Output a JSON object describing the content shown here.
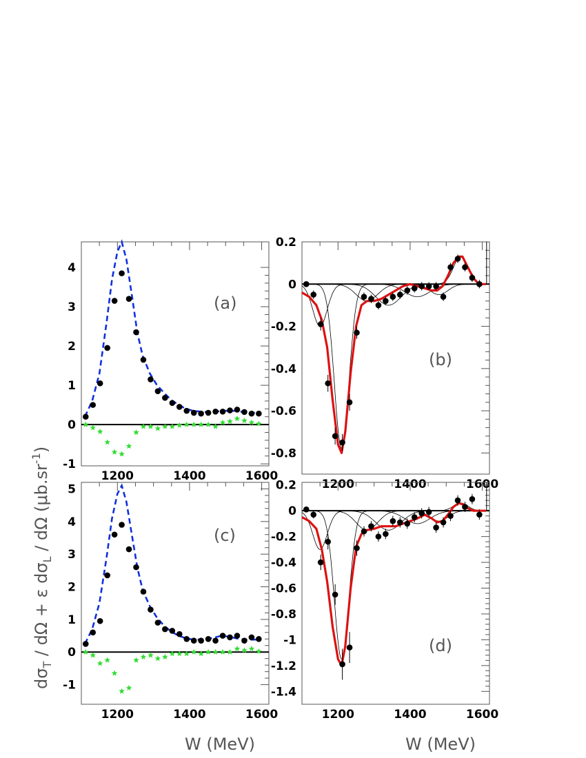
{
  "chart_data": [
    {
      "type": "scatter",
      "panel_label": "(a)",
      "xlim": [
        1100,
        1620
      ],
      "ylim": [
        -1.05,
        4.65
      ],
      "xticks": [
        1200,
        1400,
        1600
      ],
      "yticks": [
        -1,
        0,
        1,
        2,
        3,
        4
      ],
      "ytick_side": "left",
      "show_xtick_labels": true,
      "zero_line": true,
      "series": [
        {
          "marker": "dot",
          "color": "#000000",
          "x": [
            1112,
            1132,
            1152,
            1172,
            1192,
            1212,
            1232,
            1252,
            1272,
            1292,
            1312,
            1332,
            1352,
            1372,
            1392,
            1412,
            1432,
            1452,
            1472,
            1492,
            1512,
            1532,
            1552,
            1572,
            1592
          ],
          "y": [
            0.2,
            0.5,
            1.05,
            1.95,
            3.15,
            3.85,
            3.2,
            2.35,
            1.65,
            1.15,
            0.85,
            0.68,
            0.55,
            0.45,
            0.35,
            0.3,
            0.28,
            0.3,
            0.33,
            0.33,
            0.36,
            0.38,
            0.32,
            0.28,
            0.28
          ]
        },
        {
          "marker": "star",
          "color": "#33dd33",
          "x": [
            1112,
            1132,
            1152,
            1172,
            1192,
            1212,
            1232,
            1252,
            1272,
            1292,
            1312,
            1332,
            1352,
            1372,
            1392,
            1412,
            1432,
            1452,
            1472,
            1492,
            1512,
            1532,
            1552,
            1572,
            1592
          ],
          "y": [
            0.0,
            -0.08,
            -0.18,
            -0.45,
            -0.7,
            -0.75,
            -0.55,
            -0.2,
            -0.05,
            -0.05,
            -0.1,
            -0.05,
            -0.05,
            -0.02,
            0.0,
            0.0,
            0.0,
            0.0,
            -0.05,
            0.05,
            0.08,
            0.15,
            0.1,
            0.05,
            0.02
          ]
        },
        {
          "marker": "dashed-line",
          "color": "#1030dd",
          "x": [
            1110,
            1130,
            1150,
            1170,
            1185,
            1200,
            1212,
            1225,
            1240,
            1255,
            1270,
            1290,
            1310,
            1330,
            1350,
            1370,
            1390,
            1410,
            1430,
            1450,
            1470,
            1490,
            1510,
            1530,
            1550,
            1570,
            1590
          ],
          "y": [
            0.2,
            0.6,
            1.3,
            2.6,
            3.7,
            4.4,
            4.65,
            4.2,
            3.3,
            2.35,
            1.75,
            1.3,
            1.0,
            0.8,
            0.62,
            0.5,
            0.4,
            0.35,
            0.33,
            0.32,
            0.33,
            0.35,
            0.35,
            0.35,
            0.32,
            0.3,
            0.3
          ]
        }
      ]
    },
    {
      "type": "scatter",
      "panel_label": "(b)",
      "xlim": [
        1100,
        1620
      ],
      "ylim": [
        -0.9,
        0.2
      ],
      "xticks": [
        1200,
        1400,
        1600
      ],
      "yticks": [
        "0.2",
        "0",
        "-0.2",
        "-0.4",
        "-0.6",
        "-0.8"
      ],
      "ytick_side": "left",
      "show_xtick_labels": true,
      "zero_line": true,
      "series": [
        {
          "marker": "dot-with-error",
          "color": "#000000",
          "x": [
            1112,
            1132,
            1152,
            1172,
            1192,
            1212,
            1232,
            1252,
            1272,
            1292,
            1312,
            1332,
            1352,
            1372,
            1392,
            1412,
            1432,
            1452,
            1472,
            1492,
            1512,
            1532,
            1552,
            1572,
            1592
          ],
          "y": [
            0.0,
            -0.05,
            -0.19,
            -0.47,
            -0.72,
            -0.75,
            -0.56,
            -0.23,
            -0.06,
            -0.07,
            -0.1,
            -0.08,
            -0.06,
            -0.05,
            -0.03,
            -0.02,
            -0.01,
            -0.01,
            -0.01,
            -0.06,
            0.08,
            0.12,
            0.08,
            0.03,
            0.0
          ],
          "err": [
            0.01,
            0.02,
            0.03,
            0.04,
            0.04,
            0.04,
            0.04,
            0.03,
            0.02,
            0.02,
            0.02,
            0.02,
            0.02,
            0.02,
            0.02,
            0.02,
            0.02,
            0.02,
            0.02,
            0.02,
            0.02,
            0.02,
            0.02,
            0.02,
            0.02
          ]
        },
        {
          "marker": "thick-line",
          "color": "#dd1111",
          "x": [
            1100,
            1120,
            1140,
            1155,
            1170,
            1185,
            1200,
            1210,
            1220,
            1235,
            1250,
            1265,
            1280,
            1300,
            1320,
            1340,
            1360,
            1380,
            1400,
            1420,
            1440,
            1460,
            1475,
            1490,
            1505,
            1520,
            1535,
            1545,
            1560,
            1575,
            1590,
            1610
          ],
          "y": [
            -0.04,
            -0.06,
            -0.1,
            -0.17,
            -0.3,
            -0.55,
            -0.76,
            -0.8,
            -0.7,
            -0.42,
            -0.2,
            -0.1,
            -0.08,
            -0.08,
            -0.07,
            -0.05,
            -0.03,
            -0.01,
            0.0,
            -0.01,
            -0.02,
            -0.03,
            -0.03,
            -0.01,
            0.04,
            0.1,
            0.13,
            0.13,
            0.08,
            0.03,
            0.0,
            0.0
          ]
        }
      ]
    },
    {
      "type": "scatter",
      "panel_label": "(c)",
      "xlim": [
        1100,
        1620
      ],
      "ylim": [
        -1.6,
        5.2
      ],
      "xticks": [
        1200,
        1400,
        1600
      ],
      "yticks": [
        -1,
        0,
        1,
        2,
        3,
        4,
        5
      ],
      "ytick_side": "left",
      "show_xtick_labels": true,
      "zero_line": true,
      "xlabel": "W  (MeV)",
      "series": [
        {
          "marker": "dot",
          "color": "#000000",
          "x": [
            1112,
            1132,
            1152,
            1172,
            1192,
            1212,
            1232,
            1252,
            1272,
            1292,
            1312,
            1332,
            1352,
            1372,
            1392,
            1412,
            1432,
            1452,
            1472,
            1492,
            1512,
            1532,
            1552,
            1572,
            1592
          ],
          "y": [
            0.25,
            0.6,
            0.95,
            2.35,
            3.6,
            3.9,
            3.15,
            2.6,
            1.85,
            1.3,
            0.9,
            0.7,
            0.65,
            0.55,
            0.4,
            0.35,
            0.35,
            0.4,
            0.35,
            0.5,
            0.45,
            0.5,
            0.35,
            0.45,
            0.4
          ]
        },
        {
          "marker": "star",
          "color": "#33dd33",
          "x": [
            1112,
            1132,
            1152,
            1172,
            1192,
            1212,
            1232,
            1252,
            1272,
            1292,
            1312,
            1332,
            1352,
            1372,
            1392,
            1412,
            1432,
            1452,
            1472,
            1492,
            1512,
            1532,
            1552,
            1572,
            1592
          ],
          "y": [
            0.0,
            -0.1,
            -0.35,
            -0.25,
            -0.65,
            -1.2,
            -1.1,
            -0.25,
            -0.15,
            -0.1,
            -0.2,
            -0.15,
            -0.05,
            -0.05,
            -0.05,
            0.0,
            -0.05,
            0.0,
            0.0,
            0.0,
            0.0,
            0.1,
            0.05,
            0.1,
            0.02
          ]
        },
        {
          "marker": "dashed-line",
          "color": "#1030dd",
          "x": [
            1110,
            1130,
            1150,
            1170,
            1185,
            1200,
            1212,
            1225,
            1240,
            1255,
            1270,
            1290,
            1310,
            1330,
            1350,
            1370,
            1390,
            1410,
            1430,
            1450,
            1470,
            1490,
            1510,
            1530,
            1550,
            1570,
            1590
          ],
          "y": [
            0.25,
            0.7,
            1.5,
            2.9,
            4.1,
            4.85,
            5.1,
            4.6,
            3.6,
            2.6,
            1.9,
            1.4,
            1.05,
            0.8,
            0.62,
            0.5,
            0.42,
            0.38,
            0.38,
            0.4,
            0.45,
            0.5,
            0.47,
            0.42,
            0.38,
            0.38,
            0.38
          ]
        }
      ]
    },
    {
      "type": "scatter",
      "panel_label": "(d)",
      "xlim": [
        1100,
        1620
      ],
      "ylim": [
        -1.5,
        0.22
      ],
      "xticks": [
        1200,
        1400,
        1600
      ],
      "yticks": [
        "0.2",
        "0",
        "-0.2",
        "-0.4",
        "-0.6",
        "-0.8",
        "-1",
        "-1.2",
        "-1.4"
      ],
      "ytick_side": "left",
      "show_xtick_labels": true,
      "zero_line": true,
      "xlabel": "W  (MeV)",
      "series": [
        {
          "marker": "dot-with-error",
          "color": "#000000",
          "x": [
            1112,
            1132,
            1152,
            1172,
            1192,
            1212,
            1232,
            1252,
            1272,
            1292,
            1312,
            1332,
            1352,
            1372,
            1392,
            1412,
            1432,
            1452,
            1472,
            1492,
            1512,
            1532,
            1552,
            1572,
            1592
          ],
          "y": [
            0.01,
            -0.03,
            -0.4,
            -0.24,
            -0.65,
            -1.19,
            -1.06,
            -0.29,
            -0.16,
            -0.12,
            -0.2,
            -0.18,
            -0.08,
            -0.09,
            -0.1,
            -0.05,
            -0.02,
            -0.01,
            -0.13,
            -0.09,
            -0.04,
            0.08,
            0.03,
            0.09,
            -0.03
          ],
          "err": [
            0.02,
            0.03,
            0.06,
            0.06,
            0.08,
            0.12,
            0.12,
            0.06,
            0.04,
            0.04,
            0.04,
            0.04,
            0.04,
            0.04,
            0.04,
            0.04,
            0.04,
            0.04,
            0.04,
            0.04,
            0.04,
            0.04,
            0.04,
            0.04,
            0.04
          ]
        },
        {
          "marker": "thick-line",
          "color": "#dd1111",
          "x": [
            1100,
            1120,
            1140,
            1155,
            1170,
            1185,
            1200,
            1210,
            1220,
            1235,
            1250,
            1265,
            1280,
            1300,
            1320,
            1340,
            1360,
            1380,
            1400,
            1420,
            1440,
            1460,
            1475,
            1490,
            1505,
            1520,
            1535,
            1545,
            1560,
            1575,
            1590,
            1610
          ],
          "y": [
            -0.05,
            -0.08,
            -0.14,
            -0.3,
            -0.55,
            -0.9,
            -1.15,
            -1.2,
            -1.05,
            -0.6,
            -0.28,
            -0.18,
            -0.15,
            -0.14,
            -0.12,
            -0.12,
            -0.12,
            -0.1,
            -0.08,
            -0.06,
            -0.03,
            -0.06,
            -0.09,
            -0.08,
            -0.03,
            0.03,
            0.06,
            0.05,
            0.02,
            0.0,
            0.0,
            0.0
          ]
        }
      ]
    }
  ],
  "ylabel_left": "dσ_T / dΩ + ε dσ_L / dΩ  (μb.sr⁻¹)",
  "ylabel_parts": {
    "main": "dσ",
    "sub1": "T",
    "mid": " / dΩ + ε dσ",
    "sub2": "L",
    "tail": " / dΩ  (μb.sr",
    "sup": "-1",
    "close": ")"
  }
}
